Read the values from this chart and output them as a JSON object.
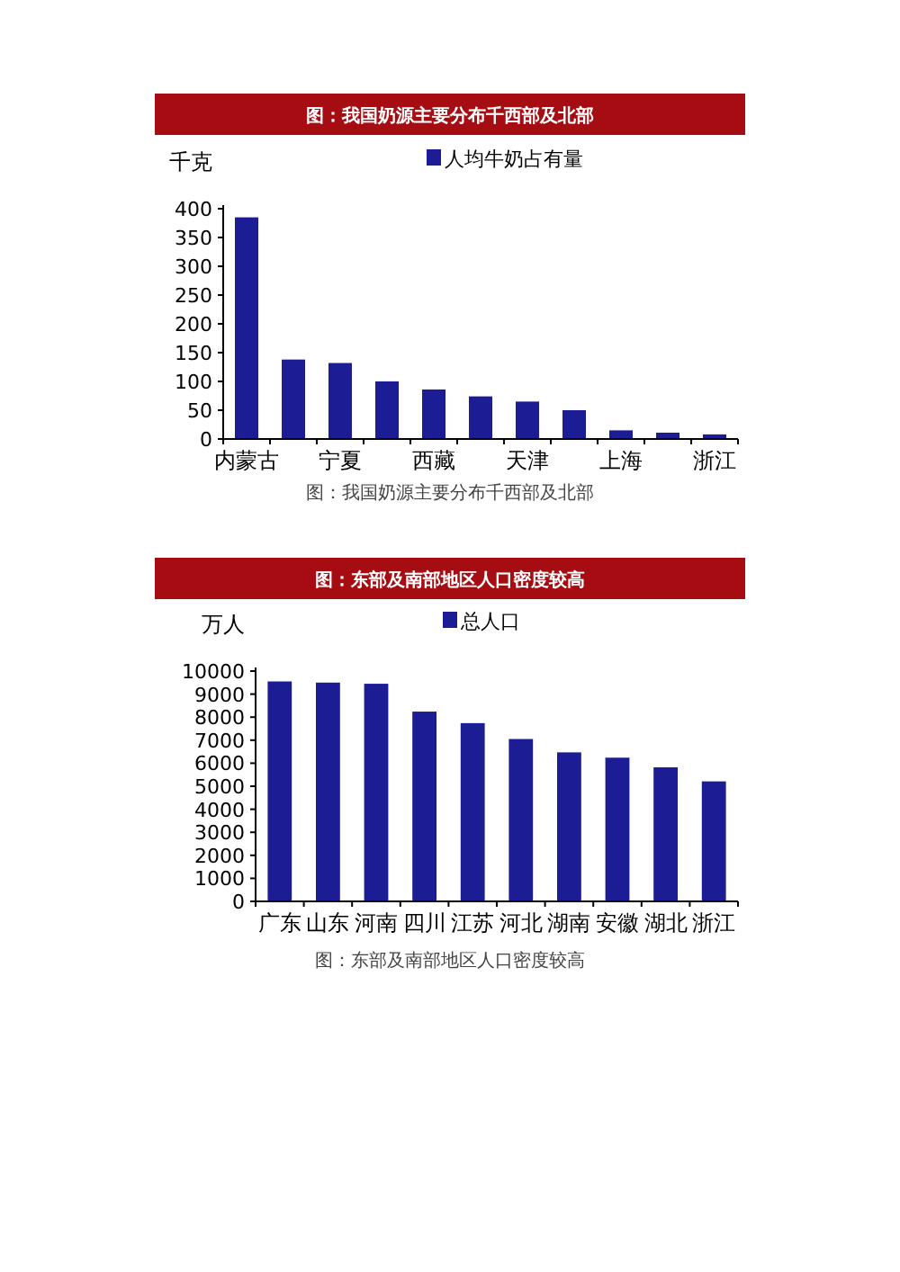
{
  "chart_data": [
    {
      "type": "bar",
      "title": "图：我国奶源主要分布千西部及北部",
      "ylabel": "千克",
      "legend": "top",
      "categories": [
        "内蒙古",
        null,
        "宁夏",
        null,
        "西藏",
        null,
        "天津",
        null,
        "上海",
        null,
        "浙江"
      ],
      "series": [
        {
          "name": "人均牛奶占有量",
          "color": "#1c1c94",
          "values": [
            385,
            138,
            132,
            100,
            86,
            74,
            65,
            50,
            15,
            11,
            8
          ]
        }
      ],
      "ylim": [
        0,
        400
      ],
      "yticks": [
        0,
        50,
        100,
        150,
        200,
        250,
        300,
        350,
        400
      ],
      "grid": false,
      "annotations": [
        "图：我国奶源主要分布千西部及北部"
      ]
    },
    {
      "type": "bar",
      "title": "图：东部及南部地区人口密度较高",
      "ylabel": "万人",
      "legend": "top",
      "categories": [
        "广东",
        "山东",
        "河南",
        "四川",
        "江苏",
        "河北",
        "湖南",
        "安徽",
        "湖北",
        "浙江"
      ],
      "series": [
        {
          "name": "总人口",
          "color": "#1c1c94",
          "values": [
            9550,
            9500,
            9450,
            8240,
            7740,
            7050,
            6470,
            6240,
            5820,
            5210
          ]
        }
      ],
      "ylim": [
        0,
        10000
      ],
      "yticks": [
        0,
        1000,
        2000,
        3000,
        4000,
        5000,
        6000,
        7000,
        8000,
        9000,
        10000
      ],
      "grid": false,
      "annotations": [
        "图：东部及南部地区人口密度较高"
      ]
    }
  ]
}
